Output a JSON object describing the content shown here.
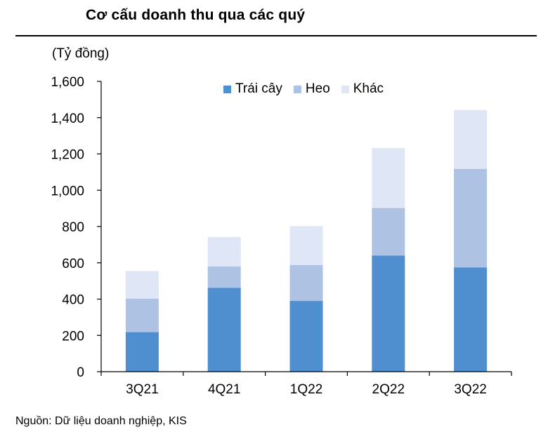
{
  "header": {
    "title": "Cơ cấu doanh thu qua các quý"
  },
  "unit_label": "(Tỷ đồng)",
  "source": "Nguồn: Dữ liệu doanh nghiệp, KIS",
  "chart_data": {
    "type": "bar",
    "stacked": true,
    "categories": [
      "3Q21",
      "4Q21",
      "1Q22",
      "2Q22",
      "3Q22"
    ],
    "series": [
      {
        "name": "Trái cây",
        "color": "#4f8fcf",
        "values": [
          218,
          462,
          390,
          640,
          575
        ]
      },
      {
        "name": "Heo",
        "color": "#aec2e4",
        "values": [
          185,
          118,
          198,
          262,
          543
        ]
      },
      {
        "name": "Khác",
        "color": "#dfe6f5",
        "values": [
          152,
          162,
          214,
          330,
          324
        ]
      }
    ],
    "ylim": [
      0,
      1600
    ],
    "yticks": [
      0,
      200,
      400,
      600,
      800,
      1000,
      1200,
      1400,
      1600
    ],
    "ytick_labels": [
      "0",
      "200",
      "400",
      "600",
      "800",
      "1,000",
      "1,200",
      "1,400",
      "1,600"
    ],
    "legend_position": "top-center",
    "grid": false
  }
}
